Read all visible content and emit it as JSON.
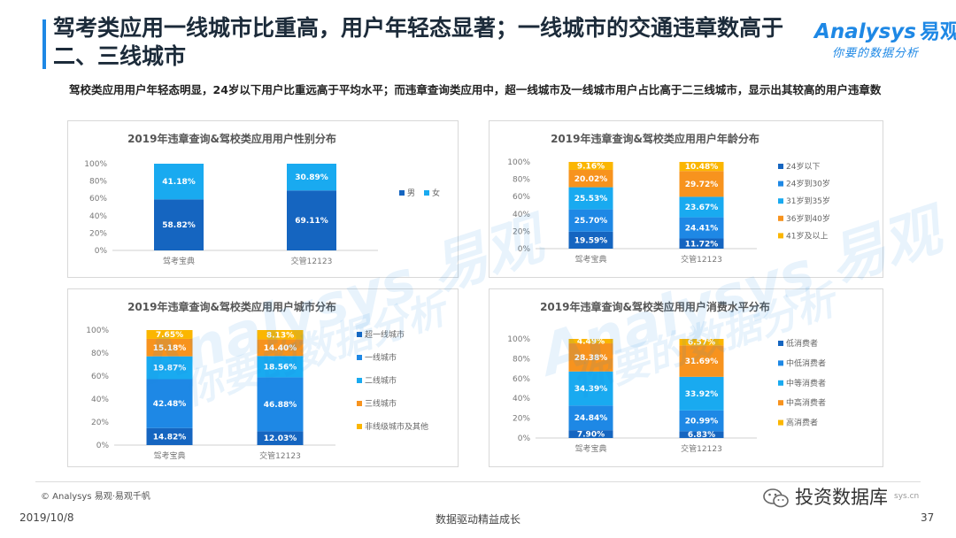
{
  "header": {
    "title": "驾考类应用一线城市比重高，用户年轻态显著；一线城市的交通违章数高于二、三线城市",
    "subtitle": "驾校类应用用户年轻态明显，24岁以下用户比重远高于平均水平；而违章查询类应用中，超一线城市及一线城市用户占比高于二三线城市，显示出其较高的用户违章数"
  },
  "logo": {
    "brand": "nalysys",
    "brand_initial": "A",
    "brand_cn": "易观",
    "tagline": "你要的数据分析"
  },
  "colors": {
    "accent": "#1e88e5",
    "c_darkblue": "#1565c0",
    "c_blue": "#1e88e5",
    "c_cyan": "#19aaf0",
    "c_orange": "#f7931e",
    "c_yellow": "#fbb600"
  },
  "chart_data": [
    {
      "type": "bar",
      "stacked": true,
      "title": "2019年违章查询&驾校类应用用户性别分布",
      "categories": [
        "驾考宝典",
        "交管12123"
      ],
      "ylim": [
        0,
        100
      ],
      "yticks": [
        "0%",
        "20%",
        "40%",
        "60%",
        "80%",
        "100%"
      ],
      "legend_position": "right",
      "series": [
        {
          "name": "男",
          "color": "#1565c0",
          "values": [
            58.82,
            69.11
          ],
          "labels": [
            "58.82%",
            "69.11%"
          ]
        },
        {
          "name": "女",
          "color": "#19aaf0",
          "values": [
            41.18,
            30.89
          ],
          "labels": [
            "41.18%",
            "30.89%"
          ]
        }
      ]
    },
    {
      "type": "bar",
      "stacked": true,
      "title": "2019年违章查询&驾校类应用用户年龄分布",
      "categories": [
        "驾考宝典",
        "交管12123"
      ],
      "ylim": [
        0,
        100
      ],
      "yticks": [
        "0%",
        "20%",
        "40%",
        "60%",
        "80%",
        "100%"
      ],
      "legend_position": "right",
      "series": [
        {
          "name": "24岁以下",
          "color": "#1565c0",
          "values": [
            19.59,
            11.72
          ],
          "labels": [
            "19.59%",
            "11.72%"
          ]
        },
        {
          "name": "24岁到30岁",
          "color": "#1e88e5",
          "values": [
            25.7,
            24.41
          ],
          "labels": [
            "25.70%",
            "24.41%"
          ]
        },
        {
          "name": "31岁到35岁",
          "color": "#19aaf0",
          "values": [
            25.53,
            23.67
          ],
          "labels": [
            "25.53%",
            "23.67%"
          ]
        },
        {
          "name": "36岁到40岁",
          "color": "#f7931e",
          "values": [
            20.02,
            29.72
          ],
          "labels": [
            "20.02%",
            "29.72%"
          ]
        },
        {
          "name": "41岁及以上",
          "color": "#fbb600",
          "values": [
            9.16,
            10.48
          ],
          "labels": [
            "9.16%",
            "10.48%"
          ]
        }
      ]
    },
    {
      "type": "bar",
      "stacked": true,
      "title": "2019年违章查询&驾校类应用用户城市分布",
      "categories": [
        "驾考宝典",
        "交管12123"
      ],
      "ylim": [
        0,
        100
      ],
      "yticks": [
        "0%",
        "20%",
        "40%",
        "60%",
        "80%",
        "100%"
      ],
      "legend_position": "right",
      "series": [
        {
          "name": "超一线城市",
          "color": "#1565c0",
          "values": [
            14.82,
            12.03
          ],
          "labels": [
            "14.82%",
            "12.03%"
          ]
        },
        {
          "name": "一线城市",
          "color": "#1e88e5",
          "values": [
            42.48,
            46.88
          ],
          "labels": [
            "42.48%",
            "46.88%"
          ]
        },
        {
          "name": "二线城市",
          "color": "#19aaf0",
          "values": [
            19.87,
            18.56
          ],
          "labels": [
            "19.87%",
            "18.56%"
          ]
        },
        {
          "name": "三线城市",
          "color": "#f7931e",
          "values": [
            15.18,
            14.4
          ],
          "labels": [
            "15.18%",
            "14.40%"
          ]
        },
        {
          "name": "非线级城市及其他",
          "color": "#fbb600",
          "values": [
            7.65,
            8.13
          ],
          "labels": [
            "7.65%",
            "8.13%"
          ]
        }
      ]
    },
    {
      "type": "bar",
      "stacked": true,
      "title": "2019年违章查询&驾校类应用用户消费水平分布",
      "categories": [
        "驾考宝典",
        "交管12123"
      ],
      "ylim": [
        0,
        100
      ],
      "yticks": [
        "0%",
        "20%",
        "40%",
        "60%",
        "80%",
        "100%"
      ],
      "legend_position": "right",
      "series": [
        {
          "name": "低消费者",
          "color": "#1565c0",
          "values": [
            7.9,
            6.83
          ],
          "labels": [
            "7.90%",
            "6.83%"
          ]
        },
        {
          "name": "中低消费者",
          "color": "#1e88e5",
          "values": [
            24.84,
            20.99
          ],
          "labels": [
            "24.84%",
            "20.99%"
          ]
        },
        {
          "name": "中等消费者",
          "color": "#19aaf0",
          "values": [
            34.39,
            33.92
          ],
          "labels": [
            "34.39%",
            "33.92%"
          ]
        },
        {
          "name": "中高消费者",
          "color": "#f7931e",
          "values": [
            28.38,
            31.69
          ],
          "labels": [
            "28.38%",
            "31.69%"
          ]
        },
        {
          "name": "高消费者",
          "color": "#fbb600",
          "values": [
            4.49,
            6.57
          ],
          "labels": [
            "4.49%",
            "6.57%"
          ]
        }
      ]
    }
  ],
  "watermark": {
    "brand": "Analysys 易观",
    "tagline": "你要的数据分析"
  },
  "footer": {
    "copyright": "© Analysys 易观·易观千帆",
    "date": "2019/10/8",
    "slogan": "数据驱动精益成长",
    "page": "37",
    "stamp": "投资数据库",
    "site": "sys.cn"
  }
}
